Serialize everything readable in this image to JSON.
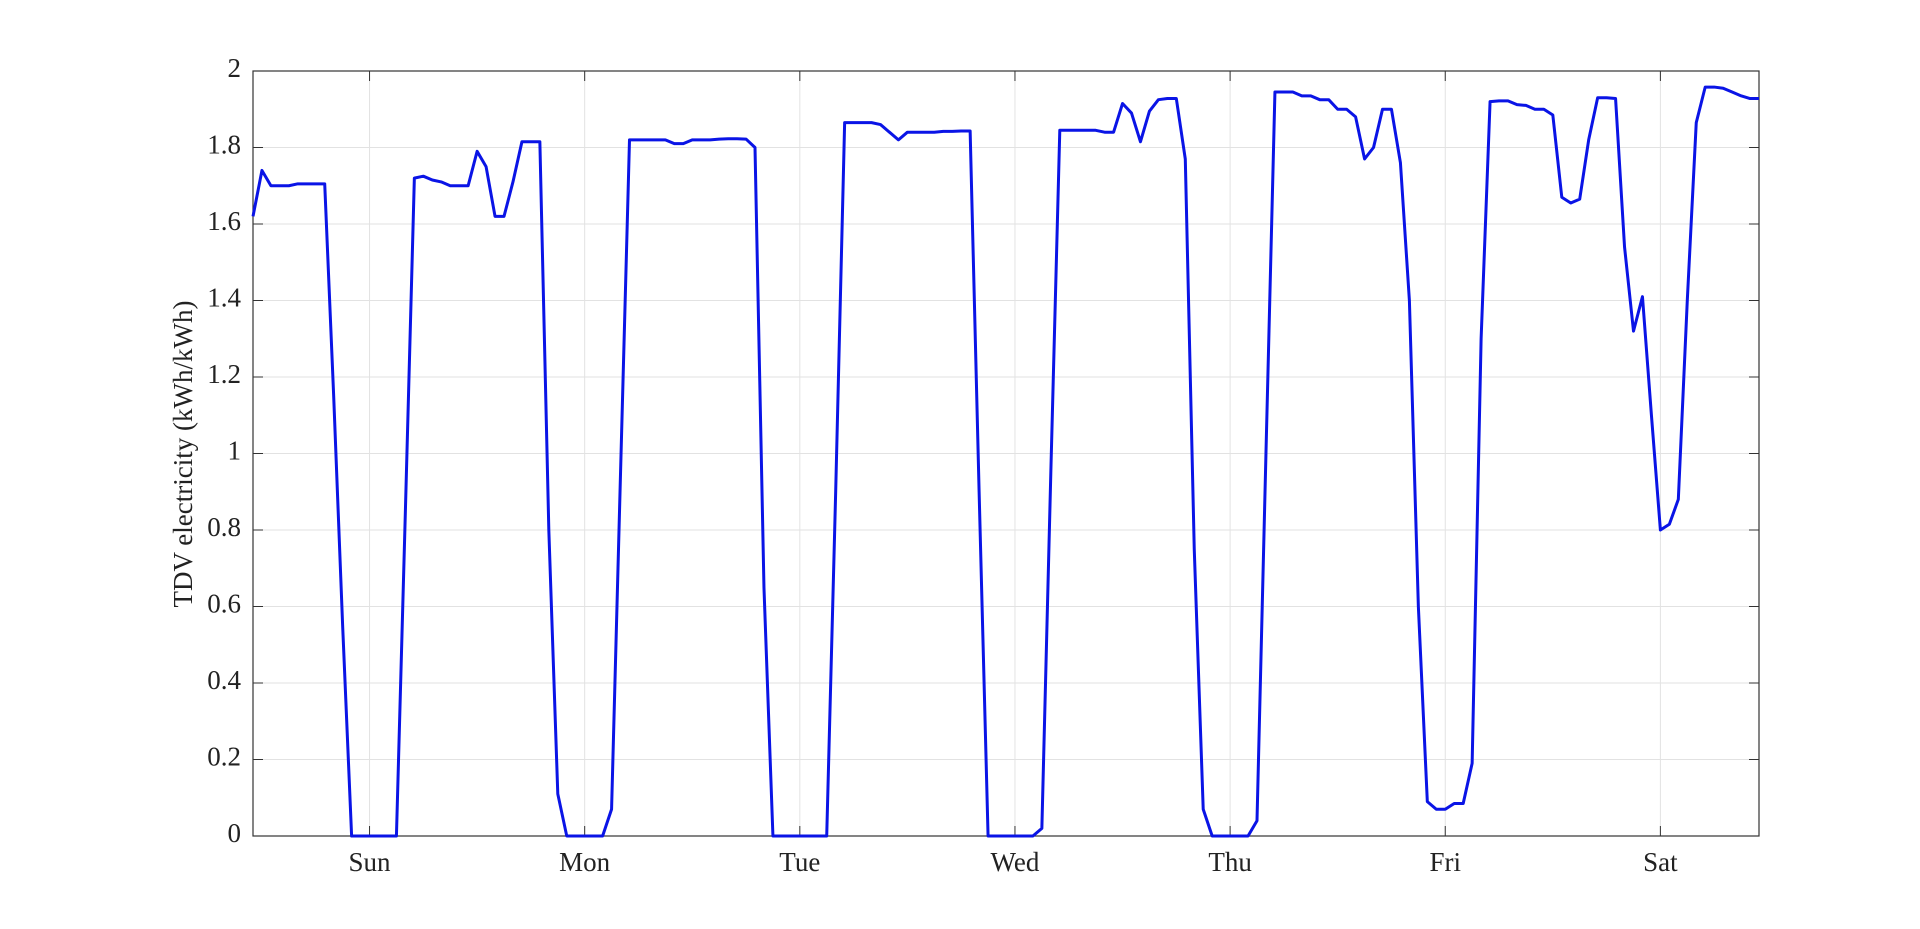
{
  "chart_data": {
    "type": "line",
    "y_label": "TDV electricity (kWh/kWh)",
    "x": [
      1,
      2,
      3,
      4,
      5,
      6,
      7,
      8,
      9,
      10,
      11,
      12,
      13,
      14,
      15,
      16,
      17,
      18,
      19,
      20,
      21,
      22,
      23,
      24,
      25,
      26,
      27,
      28,
      29,
      30,
      31,
      32,
      33,
      34,
      35,
      36,
      37,
      38,
      39,
      40,
      41,
      42,
      43,
      44,
      45,
      46,
      47,
      48,
      49,
      50,
      51,
      52,
      53,
      54,
      55,
      56,
      57,
      58,
      59,
      60,
      61,
      62,
      63,
      64,
      65,
      66,
      67,
      68,
      69,
      70,
      71,
      72,
      73,
      74,
      75,
      76,
      77,
      78,
      79,
      80,
      81,
      82,
      83,
      84,
      85,
      86,
      87,
      88,
      89,
      90,
      91,
      92,
      93,
      94,
      95,
      96,
      97,
      98,
      99,
      100,
      101,
      102,
      103,
      104,
      105,
      106,
      107,
      108,
      109,
      110,
      111,
      112,
      113,
      114,
      115,
      116,
      117,
      118,
      119,
      120,
      121,
      122,
      123,
      124,
      125,
      126,
      127,
      128,
      129,
      130,
      131,
      132,
      133,
      134,
      135,
      136,
      137,
      138,
      139,
      140,
      141,
      142,
      143,
      144,
      145,
      146,
      147,
      148,
      149,
      150,
      151,
      152,
      153,
      154,
      155,
      156,
      157,
      158,
      159,
      160,
      161,
      162,
      163,
      164,
      165,
      166,
      167,
      168,
      169
    ],
    "series": [
      {
        "color": "#0a14e6",
        "values": [
          1.62,
          1.74,
          1.7,
          1.7,
          1.7,
          1.705,
          1.705,
          1.705,
          1.705,
          1.15,
          0.55,
          0,
          0,
          0,
          0,
          0,
          0,
          0.85,
          1.72,
          1.725,
          1.715,
          1.71,
          1.7,
          1.7,
          1.7,
          1.79,
          1.75,
          1.62,
          1.62,
          1.71,
          1.815,
          1.815,
          1.815,
          0.8,
          0.11,
          0,
          0,
          0,
          0,
          0,
          0.07,
          0.95,
          1.82,
          1.82,
          1.82,
          1.82,
          1.82,
          1.81,
          1.81,
          1.82,
          1.82,
          1.82,
          1.822,
          1.823,
          1.823,
          1.822,
          1.8,
          0.65,
          0,
          0,
          0,
          0,
          0,
          0,
          0,
          0.9,
          1.865,
          1.865,
          1.865,
          1.865,
          1.86,
          1.84,
          1.82,
          1.84,
          1.84,
          1.84,
          1.84,
          1.842,
          1.842,
          1.843,
          1.843,
          0.9,
          0,
          0,
          0,
          0,
          0,
          0,
          0.02,
          0.95,
          1.845,
          1.845,
          1.845,
          1.845,
          1.845,
          1.84,
          1.84,
          1.915,
          1.89,
          1.815,
          1.895,
          1.925,
          1.928,
          1.928,
          1.77,
          0.75,
          0.07,
          0,
          0,
          0,
          0,
          0,
          0.04,
          1.0,
          1.945,
          1.945,
          1.945,
          1.935,
          1.935,
          1.925,
          1.925,
          1.9,
          1.9,
          1.88,
          1.77,
          1.8,
          1.9,
          1.9,
          1.76,
          1.4,
          0.6,
          0.09,
          0.07,
          0.07,
          0.085,
          0.085,
          0.19,
          1.3,
          1.92,
          1.922,
          1.922,
          1.912,
          1.91,
          1.9,
          1.9,
          1.885,
          1.67,
          1.655,
          1.665,
          1.82,
          1.93,
          1.93,
          1.928,
          1.54,
          1.32,
          1.41,
          1.1,
          0.8,
          0.815,
          0.88,
          1.4,
          1.865,
          1.958,
          1.958,
          1.955,
          1.945,
          1.935,
          1.928,
          1.928
        ]
      }
    ],
    "xlim": [
      1,
      169
    ],
    "xticks": [
      {
        "value": 14,
        "label": "Sun"
      },
      {
        "value": 38,
        "label": "Mon"
      },
      {
        "value": 62,
        "label": "Tue"
      },
      {
        "value": 86,
        "label": "Wed"
      },
      {
        "value": 110,
        "label": "Thu"
      },
      {
        "value": 134,
        "label": "Fri"
      },
      {
        "value": 158,
        "label": "Sat"
      }
    ],
    "ylim": [
      0,
      2
    ],
    "yticks": [
      0,
      0.2,
      0.4,
      0.6,
      0.8,
      1,
      1.2,
      1.4,
      1.6,
      1.8,
      2
    ],
    "grid": true
  }
}
